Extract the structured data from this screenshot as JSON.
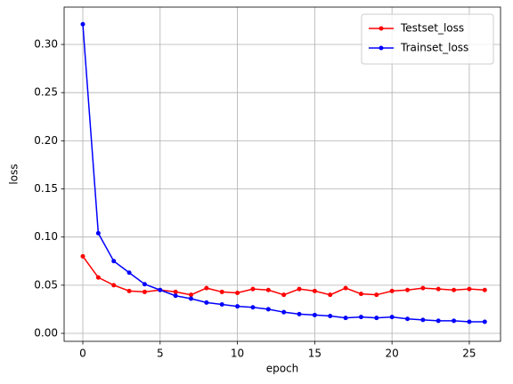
{
  "chart_data": {
    "type": "line",
    "x_label": "epoch",
    "y_label": "loss",
    "x": [
      0,
      1,
      2,
      3,
      4,
      5,
      6,
      7,
      8,
      9,
      10,
      11,
      12,
      13,
      14,
      15,
      16,
      17,
      18,
      19,
      20,
      21,
      22,
      23,
      24,
      25,
      26
    ],
    "series": [
      {
        "name": "Testset_loss",
        "color": "#ff0000",
        "values": [
          0.08,
          0.058,
          0.05,
          0.044,
          0.043,
          0.045,
          0.043,
          0.04,
          0.047,
          0.043,
          0.042,
          0.046,
          0.045,
          0.04,
          0.046,
          0.044,
          0.04,
          0.047,
          0.041,
          0.04,
          0.044,
          0.045,
          0.047,
          0.046,
          0.045,
          0.046,
          0.045
        ]
      },
      {
        "name": "Trainset_loss",
        "color": "#0000ff",
        "values": [
          0.321,
          0.104,
          0.075,
          0.063,
          0.051,
          0.045,
          0.039,
          0.036,
          0.032,
          0.03,
          0.028,
          0.027,
          0.025,
          0.022,
          0.02,
          0.019,
          0.018,
          0.016,
          0.017,
          0.016,
          0.017,
          0.015,
          0.014,
          0.013,
          0.013,
          0.012,
          0.012
        ]
      }
    ],
    "xlim": [
      -1.21,
      27.02
    ],
    "ylim": [
      -0.0083,
      0.3388
    ],
    "xticks": [
      0,
      5,
      10,
      15,
      20,
      25
    ],
    "yticks": [
      {
        "value": 0,
        "label": "0.00"
      },
      {
        "value": 0.05,
        "label": "0.05"
      },
      {
        "value": 0.1,
        "label": "0.10"
      },
      {
        "value": 0.15,
        "label": "0.15"
      },
      {
        "value": 0.2,
        "label": "0.20"
      },
      {
        "value": 0.25,
        "label": "0.25"
      },
      {
        "value": 0.3,
        "label": "0.30"
      }
    ],
    "grid": true,
    "legend": "upper right"
  }
}
